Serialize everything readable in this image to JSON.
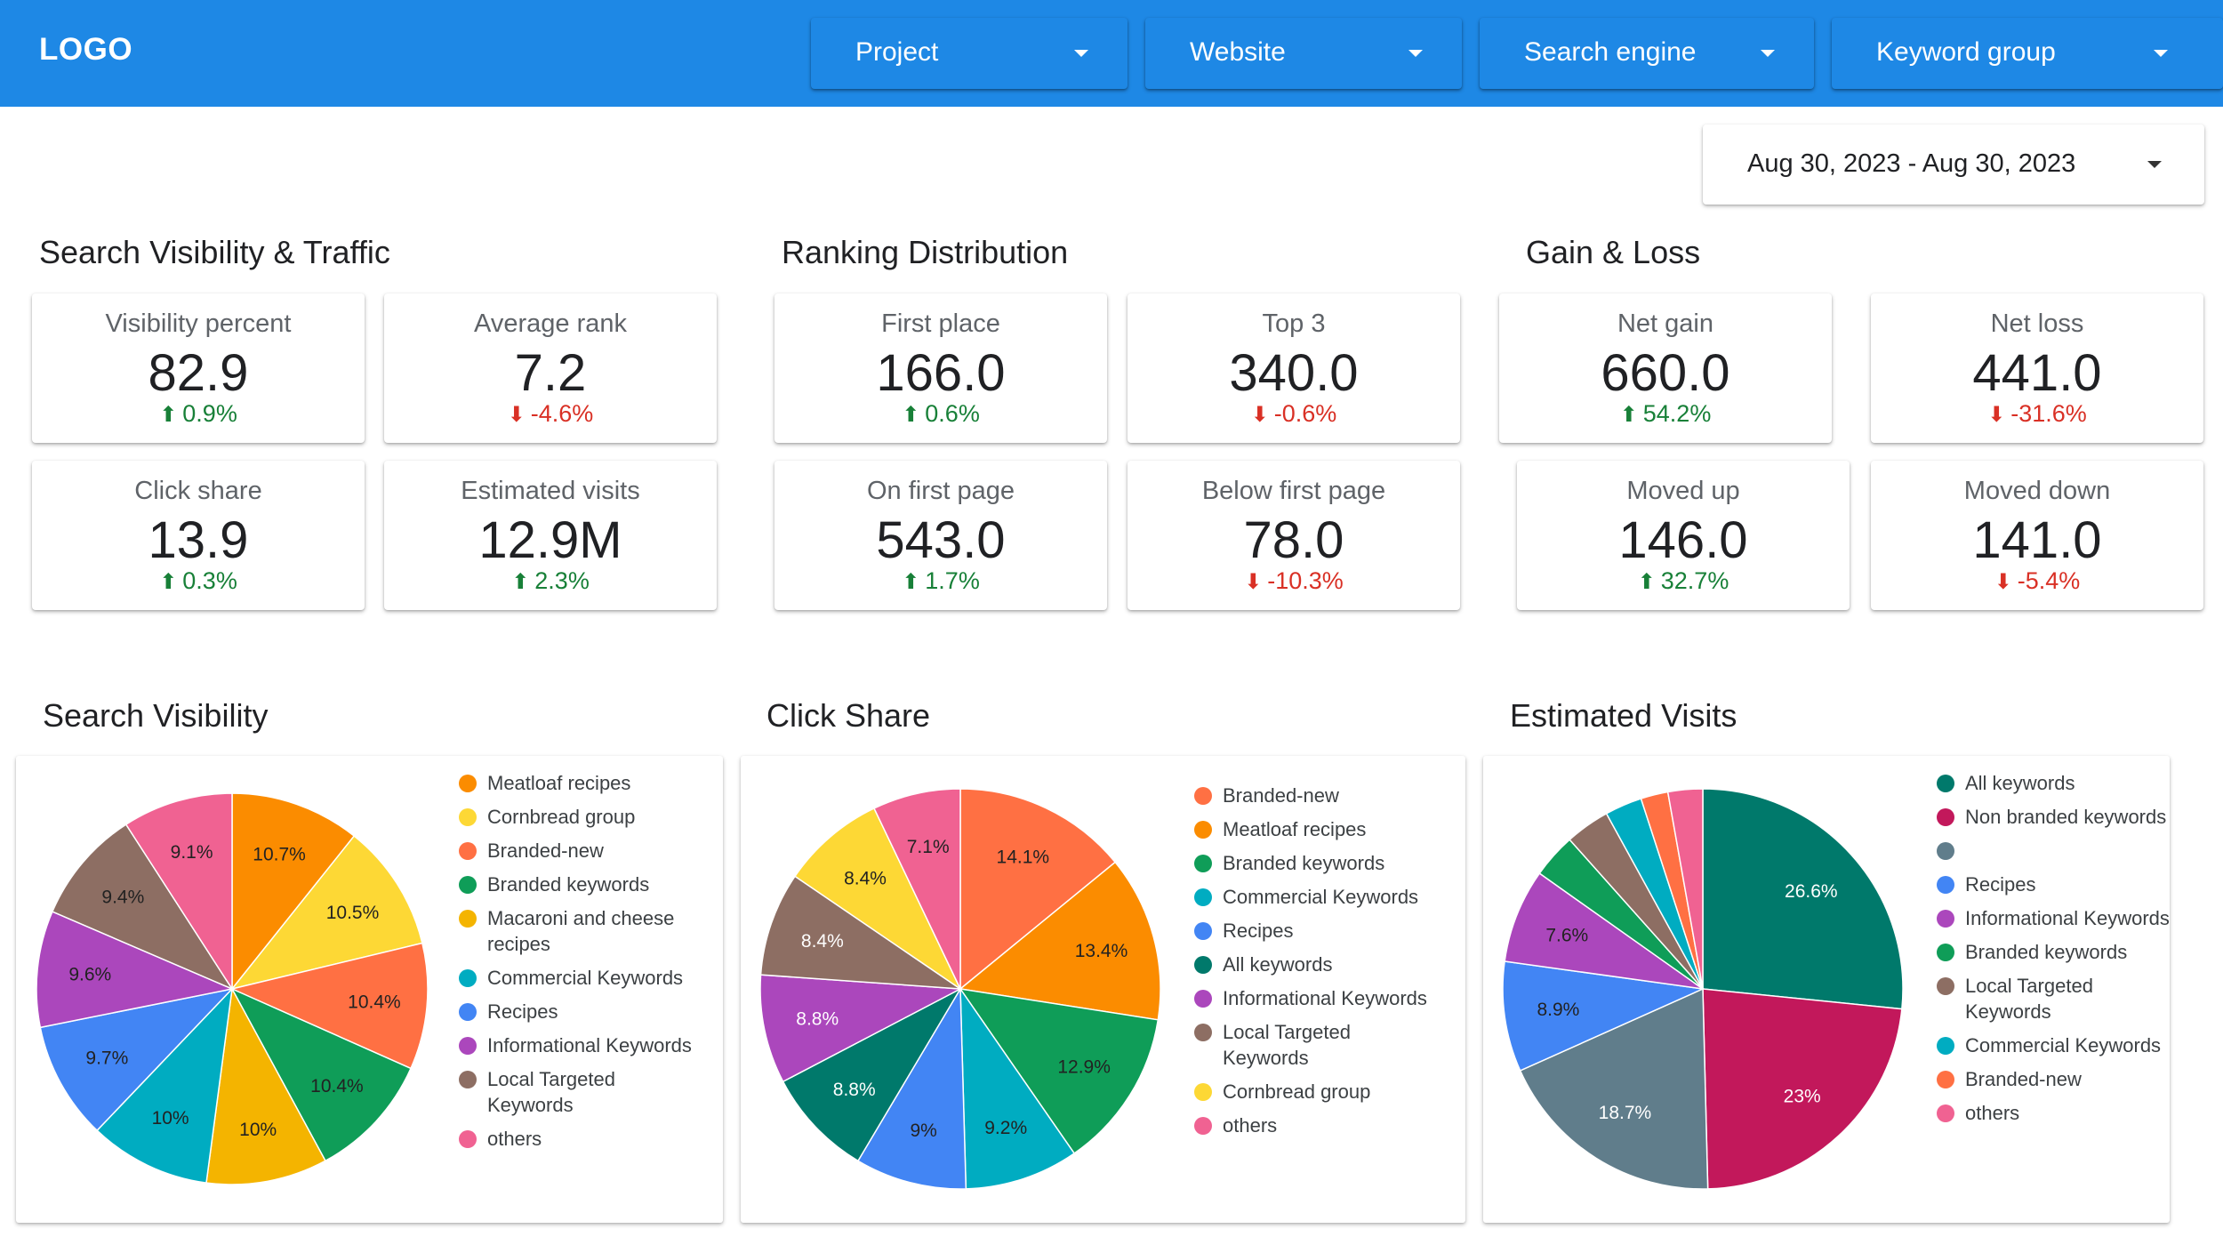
{
  "header": {
    "logo": "LOGO",
    "filters": [
      "Project",
      "Website",
      "Search engine",
      "Keyword group"
    ]
  },
  "date_range": "Aug 30, 2023 - Aug 30, 2023",
  "sections": {
    "visibility": "Search Visibility & Traffic",
    "ranking": "Ranking Distribution",
    "gainloss": "Gain & Loss"
  },
  "kpis": [
    {
      "label": "Visibility percent",
      "value": "82.9",
      "delta": "0.9%",
      "dir": "up"
    },
    {
      "label": "Average rank",
      "value": "7.2",
      "delta": "-4.6%",
      "dir": "down"
    },
    {
      "label": "Click share",
      "value": "13.9",
      "delta": "0.3%",
      "dir": "up"
    },
    {
      "label": "Estimated visits",
      "value": "12.9M",
      "delta": "2.3%",
      "dir": "up"
    },
    {
      "label": "First place",
      "value": "166.0",
      "delta": "0.6%",
      "dir": "up"
    },
    {
      "label": "Top 3",
      "value": "340.0",
      "delta": "-0.6%",
      "dir": "down"
    },
    {
      "label": "On first page",
      "value": "543.0",
      "delta": "1.7%",
      "dir": "up"
    },
    {
      "label": "Below first page",
      "value": "78.0",
      "delta": "-10.3%",
      "dir": "down"
    },
    {
      "label": "Net gain",
      "value": "660.0",
      "delta": "54.2%",
      "dir": "up"
    },
    {
      "label": "Net loss",
      "value": "441.0",
      "delta": "-31.6%",
      "dir": "down"
    },
    {
      "label": "Moved up",
      "value": "146.0",
      "delta": "32.7%",
      "dir": "up"
    },
    {
      "label": "Moved down",
      "value": "141.0",
      "delta": "-5.4%",
      "dir": "down"
    }
  ],
  "colors": {
    "up": "#188038",
    "down": "#d93025",
    "header": "#1E88E5"
  },
  "chart_data": [
    {
      "type": "pie",
      "title": "Search Visibility",
      "slices": [
        {
          "name": "Meatloaf recipes",
          "value": 10.7,
          "label": "10.7%",
          "color": "#FB8C00"
        },
        {
          "name": "Cornbread group",
          "value": 10.5,
          "label": "10.5%",
          "color": "#FDD835"
        },
        {
          "name": "Branded-new",
          "value": 10.4,
          "label": "10.4%",
          "color": "#FF7043"
        },
        {
          "name": "Branded keywords",
          "value": 10.4,
          "label": "10.4%",
          "color": "#0F9D58"
        },
        {
          "name": "Macaroni and cheese recipes",
          "value": 10.0,
          "label": "10%",
          "color": "#F4B400"
        },
        {
          "name": "Commercial Keywords",
          "value": 10.0,
          "label": "10%",
          "color": "#00ACC1"
        },
        {
          "name": "Recipes",
          "value": 9.7,
          "label": "9.7%",
          "color": "#4285F4"
        },
        {
          "name": "Informational Keywords",
          "value": 9.6,
          "label": "9.6%",
          "color": "#AB47BC"
        },
        {
          "name": "Local Targeted Keywords",
          "value": 9.4,
          "label": "9.4%",
          "color": "#8D6E63"
        },
        {
          "name": "others",
          "value": 9.1,
          "label": "9.1%",
          "color": "#F06292"
        }
      ]
    },
    {
      "type": "pie",
      "title": "Click Share",
      "slices": [
        {
          "name": "Branded-new",
          "value": 14.1,
          "label": "14.1%",
          "color": "#FF7043"
        },
        {
          "name": "Meatloaf recipes",
          "value": 13.4,
          "label": "13.4%",
          "color": "#FB8C00"
        },
        {
          "name": "Branded keywords",
          "value": 12.9,
          "label": "12.9%",
          "color": "#0F9D58"
        },
        {
          "name": "Commercial Keywords",
          "value": 9.2,
          "label": "9.2%",
          "color": "#00ACC1"
        },
        {
          "name": "Recipes",
          "value": 9.0,
          "label": "9%",
          "color": "#4285F4"
        },
        {
          "name": "All keywords",
          "value": 8.8,
          "label": "8.8%",
          "color": "#00796B"
        },
        {
          "name": "Informational Keywords",
          "value": 8.8,
          "label": "8.8%",
          "color": "#AB47BC"
        },
        {
          "name": "Local Targeted Keywords",
          "value": 8.4,
          "label": "8.4%",
          "color": "#8D6E63"
        },
        {
          "name": "Cornbread group",
          "value": 8.4,
          "label": "8.4%",
          "color": "#FDD835"
        },
        {
          "name": "others",
          "value": 7.1,
          "label": "7.1%",
          "color": "#F06292"
        }
      ]
    },
    {
      "type": "pie",
      "title": "Estimated Visits",
      "slices": [
        {
          "name": "All keywords",
          "value": 26.6,
          "label": "26.6%",
          "color": "#00796B"
        },
        {
          "name": "Non branded keywords",
          "value": 23.0,
          "label": "23%",
          "color": "#C2185B"
        },
        {
          "name": "",
          "value": 18.7,
          "label": "18.7%",
          "color": "#607D8B"
        },
        {
          "name": "Recipes",
          "value": 8.9,
          "label": "8.9%",
          "color": "#4285F4"
        },
        {
          "name": "Informational Keywords",
          "value": 7.6,
          "label": "7.6%",
          "color": "#AB47BC"
        },
        {
          "name": "Branded keywords",
          "value": 3.6,
          "label": "",
          "color": "#0F9D58"
        },
        {
          "name": "Local Targeted Keywords",
          "value": 3.6,
          "label": "",
          "color": "#8D6E63"
        },
        {
          "name": "Commercial Keywords",
          "value": 3.0,
          "label": "",
          "color": "#00ACC1"
        },
        {
          "name": "Branded-new",
          "value": 2.2,
          "label": "",
          "color": "#FF7043"
        },
        {
          "name": "others",
          "value": 2.8,
          "label": "",
          "color": "#F06292"
        }
      ]
    }
  ]
}
